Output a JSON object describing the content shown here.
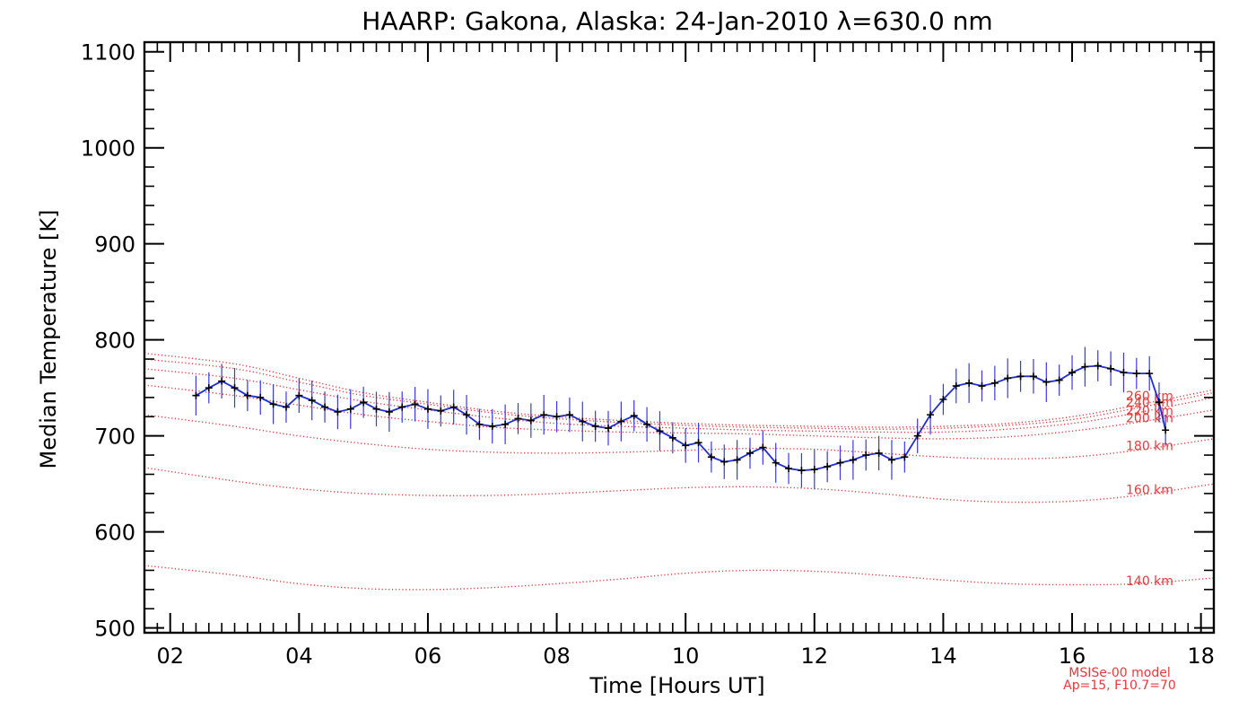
{
  "chart_data": {
    "type": "line",
    "title": "HAARP: Gakona,  Alaska: 24-Jan-2010 λ=630.0 nm",
    "xlabel": "Time [Hours UT]",
    "ylabel": "Median Temperature [K]",
    "xlim": [
      1.6,
      18.2
    ],
    "ylim": [
      495,
      1110
    ],
    "x_ticks": [
      2,
      4,
      6,
      8,
      10,
      12,
      14,
      16,
      18
    ],
    "x_tick_labels": [
      "02",
      "04",
      "06",
      "08",
      "10",
      "12",
      "14",
      "16",
      "18"
    ],
    "y_ticks": [
      500,
      600,
      700,
      800,
      900,
      1000,
      1100
    ],
    "y_tick_labels": [
      "500",
      "600",
      "700",
      "800",
      "900",
      "1000",
      "1100"
    ],
    "grid": false,
    "colors": {
      "measured_line": "#1f2fd0",
      "measured_marker": "#000000",
      "error_bars": "#3a3ae0",
      "model": "#e8393b"
    },
    "measured": {
      "x": [
        2.4,
        2.6,
        2.8,
        3.0,
        3.2,
        3.4,
        3.6,
        3.8,
        4.0,
        4.2,
        4.4,
        4.6,
        4.8,
        5.0,
        5.2,
        5.4,
        5.6,
        5.8,
        6.0,
        6.2,
        6.4,
        6.6,
        6.8,
        7.0,
        7.2,
        7.4,
        7.6,
        7.8,
        8.0,
        8.2,
        8.4,
        8.6,
        8.8,
        9.0,
        9.2,
        9.4,
        9.6,
        9.8,
        10.0,
        10.2,
        10.4,
        10.6,
        10.8,
        11.0,
        11.2,
        11.4,
        11.6,
        11.8,
        12.0,
        12.2,
        12.4,
        12.6,
        12.8,
        13.0,
        13.2,
        13.4,
        13.6,
        13.8,
        14.0,
        14.2,
        14.4,
        14.6,
        14.8,
        15.0,
        15.2,
        15.4,
        15.6,
        15.8,
        16.0,
        16.2,
        16.4,
        16.6,
        16.8,
        17.0,
        17.2,
        17.35,
        17.45
      ],
      "y": [
        742,
        750,
        757,
        750,
        742,
        740,
        733,
        730,
        742,
        737,
        730,
        725,
        728,
        735,
        728,
        725,
        730,
        733,
        728,
        726,
        730,
        722,
        712,
        710,
        712,
        718,
        716,
        722,
        720,
        722,
        715,
        710,
        708,
        715,
        721,
        712,
        705,
        698,
        690,
        693,
        678,
        673,
        675,
        682,
        688,
        672,
        666,
        664,
        665,
        668,
        672,
        675,
        680,
        682,
        675,
        678,
        700,
        722,
        738,
        752,
        755,
        752,
        755,
        760,
        762,
        762,
        756,
        758,
        766,
        772,
        773,
        770,
        766,
        765,
        765,
        735,
        706
      ],
      "error": 18
    },
    "model_curves": [
      {
        "label": "260 km",
        "x": [
          1.6,
          3,
          4,
          5,
          6,
          7,
          8,
          9,
          10,
          11,
          12,
          13,
          14,
          15,
          16,
          17,
          18.2
        ],
        "y": [
          786,
          775,
          760,
          745,
          735,
          726,
          720,
          716,
          713,
          711,
          710,
          709,
          710,
          713,
          720,
          732,
          748
        ]
      },
      {
        "label": "240 km",
        "x": [
          1.6,
          3,
          4,
          5,
          6,
          7,
          8,
          9,
          10,
          11,
          12,
          13,
          14,
          15,
          16,
          17,
          18.2
        ],
        "y": [
          780,
          770,
          756,
          742,
          733,
          724,
          718,
          714,
          711,
          709,
          708,
          707,
          708,
          711,
          717,
          729,
          745
        ]
      },
      {
        "label": "220 km",
        "x": [
          1.6,
          3,
          4,
          5,
          6,
          7,
          8,
          9,
          10,
          11,
          12,
          13,
          14,
          15,
          16,
          17,
          18.2
        ],
        "y": [
          770,
          760,
          748,
          736,
          727,
          719,
          713,
          710,
          708,
          706,
          705,
          704,
          704,
          707,
          713,
          724,
          740
        ]
      },
      {
        "label": "200 km",
        "x": [
          1.6,
          3,
          4,
          5,
          6,
          7,
          8,
          9,
          10,
          11,
          12,
          13,
          14,
          15,
          16,
          17,
          18.2
        ],
        "y": [
          753,
          742,
          732,
          722,
          715,
          709,
          706,
          704,
          703,
          702,
          700,
          698,
          697,
          699,
          705,
          714,
          727
        ]
      },
      {
        "label": "180 km",
        "x": [
          1.6,
          3,
          4,
          5,
          6,
          7,
          8,
          9,
          10,
          11,
          12,
          13,
          14,
          15,
          16,
          17,
          18.2
        ],
        "y": [
          722,
          710,
          700,
          692,
          686,
          683,
          682,
          683,
          685,
          687,
          686,
          682,
          678,
          676,
          678,
          685,
          697
        ]
      },
      {
        "label": "160 km",
        "x": [
          1.6,
          3,
          4,
          5,
          6,
          7,
          8,
          9,
          10,
          11,
          12,
          13,
          14,
          15,
          16,
          17,
          18.2
        ],
        "y": [
          667,
          653,
          645,
          640,
          638,
          638,
          640,
          643,
          646,
          647,
          645,
          640,
          634,
          631,
          632,
          638,
          650
        ]
      },
      {
        "label": "140 km",
        "x": [
          1.6,
          3,
          4,
          5,
          6,
          7,
          8,
          9,
          10,
          11,
          12,
          13,
          14,
          15,
          16,
          17,
          18.2
        ],
        "y": [
          565,
          555,
          546,
          541,
          540,
          542,
          546,
          551,
          557,
          560,
          559,
          555,
          550,
          546,
          545,
          546,
          552
        ]
      }
    ],
    "model_note": [
      "MSISe-00 model",
      "Ap=15, F10.7=70"
    ]
  }
}
